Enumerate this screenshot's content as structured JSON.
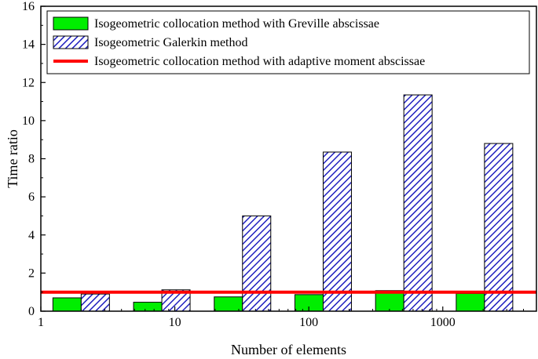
{
  "chart_data": {
    "type": "bar",
    "xlabel": "Number of elements",
    "ylabel": "Time ratio",
    "ylim": [
      0,
      16
    ],
    "xscale": "log",
    "xlim": [
      1,
      5000
    ],
    "x_ticks": [
      {
        "value": 1,
        "label": "1"
      },
      {
        "value": 10,
        "label": "10"
      },
      {
        "value": 100,
        "label": "100"
      },
      {
        "value": 1000,
        "label": "1000"
      }
    ],
    "y_ticks": [
      0,
      2,
      4,
      6,
      8,
      10,
      12,
      14,
      16
    ],
    "categories": [
      2,
      8,
      32,
      128,
      512,
      2048
    ],
    "series": [
      {
        "name": "Isogeometric collocation method with Greville abscissae",
        "style": "solid",
        "color": "#00ee00",
        "values": [
          0.7,
          0.47,
          0.75,
          0.87,
          1.08,
          0.93
        ]
      },
      {
        "name": "Isogeometric Galerkin method",
        "style": "hatched",
        "color": "#1f1fbf",
        "values": [
          0.9,
          1.12,
          5.0,
          8.35,
          11.35,
          8.8
        ]
      },
      {
        "name": "Isogeometric collocation method with adaptive moment abscissae",
        "style": "line",
        "color": "#ff0000",
        "values": [
          1.0,
          1.0,
          1.0,
          1.0,
          1.0,
          1.0
        ]
      }
    ],
    "legend_position": "top-left",
    "grid": false
  }
}
